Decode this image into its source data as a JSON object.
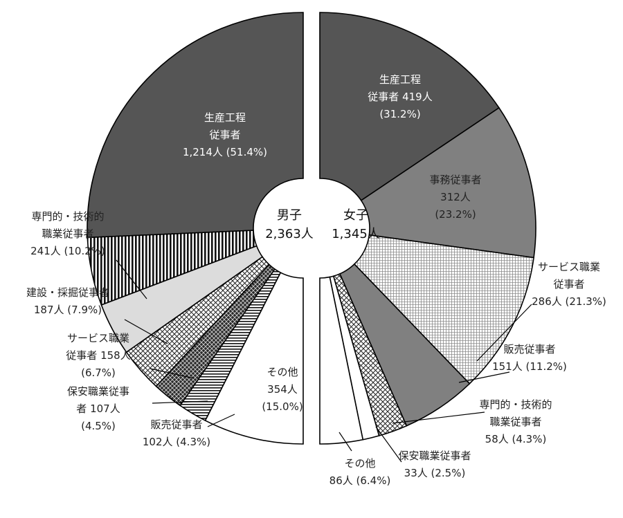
{
  "chart_data": [
    {
      "type": "pie",
      "center": {
        "lines": [
          "男子",
          "2,363人"
        ]
      },
      "series": [
        {
          "name": "生産工程従事者",
          "value": 1214,
          "percent": 51.4,
          "fill": "dark",
          "label_lines": [
            "生産工程",
            "従事者",
            "1,214人 (51.4%)"
          ],
          "label_color": "#ffffff"
        },
        {
          "name": "専門的・技術的職業従事者",
          "value": 241,
          "percent": 10.2,
          "fill": "vlines",
          "label_lines": [
            "専門的・技術的",
            "職業従事者",
            "241人 (10.2%)"
          ],
          "label_color": "#222222"
        },
        {
          "name": "建設・採掘従事者",
          "value": 187,
          "percent": 7.9,
          "fill": "light",
          "label_lines": [
            "建設・採掘従事者",
            "187人 (7.9%)"
          ],
          "label_color": "#222222"
        },
        {
          "name": "サービス職業従事者",
          "value": 158,
          "percent": 6.7,
          "fill": "crosshatch",
          "label_lines": [
            "サービス職業",
            "従事者 158人",
            "(6.7%)"
          ],
          "label_color": "#222222"
        },
        {
          "name": "保安職業従事者",
          "value": 107,
          "percent": 4.5,
          "fill": "darkcheck",
          "label_lines": [
            "保安職業従事",
            "者 107人",
            "(4.5%)"
          ],
          "label_color": "#222222"
        },
        {
          "name": "販売従事者",
          "value": 102,
          "percent": 4.3,
          "fill": "hlines",
          "label_lines": [
            "販売従事者",
            "102人 (4.3%)"
          ],
          "label_color": "#222222"
        },
        {
          "name": "その他",
          "value": 354,
          "percent": 15.0,
          "fill": "white",
          "label_lines": [
            "その他",
            "354人",
            "(15.0%)"
          ],
          "label_color": "#222222"
        }
      ]
    },
    {
      "type": "pie",
      "center": {
        "lines": [
          "女子",
          "1,345人"
        ]
      },
      "series": [
        {
          "name": "生産工程従事者",
          "value": 419,
          "percent": 31.2,
          "fill": "dark",
          "label_lines": [
            "生産工程",
            "従事者 419人",
            "(31.2%)"
          ],
          "label_color": "#ffffff"
        },
        {
          "name": "事務従事者",
          "value": 312,
          "percent": 23.2,
          "fill": "mid",
          "label_lines": [
            "事務従事者",
            "312人",
            "(23.2%)"
          ],
          "label_color": "#222222"
        },
        {
          "name": "サービス職業従事者",
          "value": 286,
          "percent": 21.3,
          "fill": "grid",
          "label_lines": [
            "サービス職業",
            "従事者",
            "286人 (21.3%)"
          ],
          "label_color": "#222222"
        },
        {
          "name": "販売従事者",
          "value": 151,
          "percent": 11.2,
          "fill": "mid",
          "label_lines": [
            "販売従事者",
            "151人 (11.2%)"
          ],
          "label_color": "#222222"
        },
        {
          "name": "専門的・技術的職業従事者",
          "value": 58,
          "percent": 4.3,
          "fill": "crosshatch",
          "label_lines": [
            "専門的・技術的",
            "職業従事者",
            "58人 (4.3%)"
          ],
          "label_color": "#222222"
        },
        {
          "name": "保安職業従事者",
          "value": 33,
          "percent": 2.5,
          "fill": "white",
          "label_lines": [
            "保安職業従事者",
            "33人 (2.5%)"
          ],
          "label_color": "#222222"
        },
        {
          "name": "その他",
          "value": 86,
          "percent": 6.4,
          "fill": "white",
          "label_lines": [
            "その他",
            "86人 (6.4%)"
          ],
          "label_color": "#222222"
        }
      ]
    }
  ]
}
